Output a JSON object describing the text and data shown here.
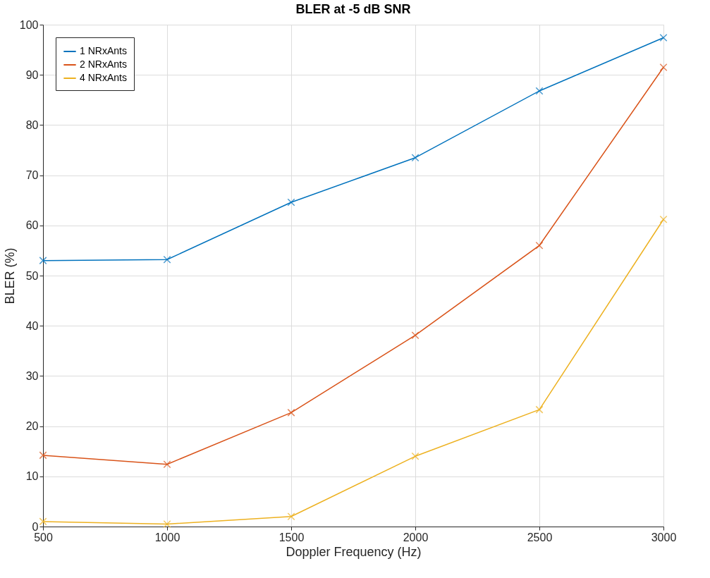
{
  "chart_data": {
    "type": "line",
    "title": "BLER at -5 dB SNR",
    "xlabel": "Doppler Frequency (Hz)",
    "ylabel": "BLER (%)",
    "x": [
      500,
      1000,
      1500,
      2000,
      2500,
      3000
    ],
    "series": [
      {
        "name": "1 NRxAnts",
        "color": "#0072bd",
        "values": [
          53,
          53.2,
          64.6,
          73.5,
          86.8,
          97.4
        ]
      },
      {
        "name": "2 NRxAnts",
        "color": "#d95319",
        "values": [
          14.2,
          12.4,
          22.7,
          38.1,
          56,
          91.5
        ]
      },
      {
        "name": "4 NRxAnts",
        "color": "#edb120",
        "values": [
          1,
          0.5,
          2,
          14,
          23.3,
          61.2
        ]
      }
    ],
    "xlim": [
      500,
      3000
    ],
    "xticks": [
      500,
      1000,
      1500,
      2000,
      2500,
      3000
    ],
    "ylim": [
      0,
      100
    ],
    "yticks": [
      0,
      10,
      20,
      30,
      40,
      50,
      60,
      70,
      80,
      90,
      100
    ],
    "grid": true,
    "legend": "top left",
    "marker": "cross",
    "line_style": "solid"
  }
}
